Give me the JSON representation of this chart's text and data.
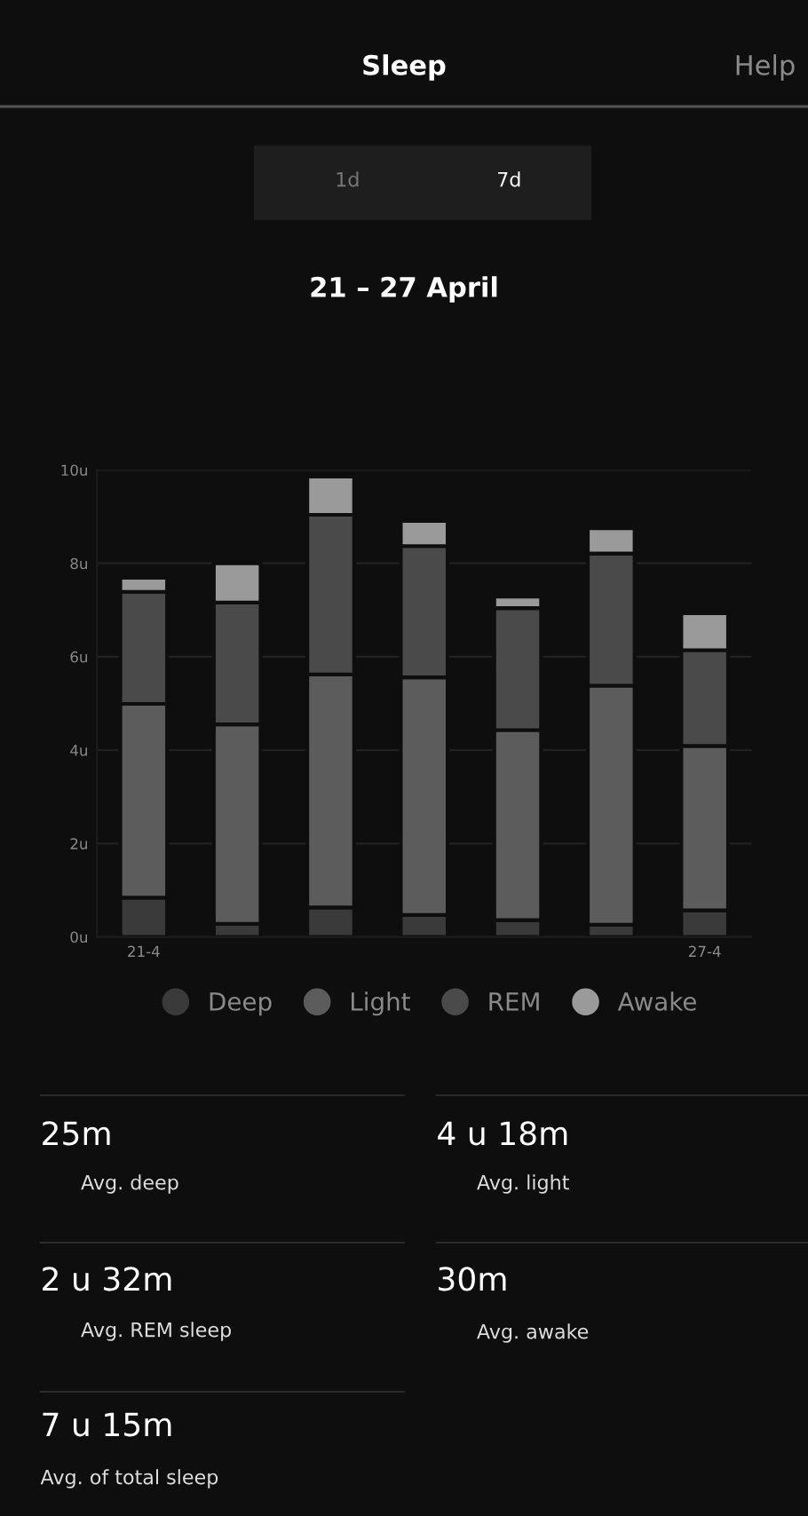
{
  "chart_data": {
    "type": "bar",
    "title": "Sleep",
    "subtitle": "21 – 27 April",
    "categories": [
      "21-4",
      null,
      null,
      null,
      null,
      null,
      "27-4"
    ],
    "stacked": true,
    "series": [
      {
        "name": "Deep",
        "color": "#3a3a3a",
        "values": [
          0.84,
          0.28,
          0.63,
          0.47,
          0.36,
          0.26,
          0.57
        ]
      },
      {
        "name": "Light",
        "color": "#5c5c5c",
        "values": [
          4.15,
          4.27,
          4.99,
          5.09,
          4.07,
          5.12,
          3.52
        ]
      },
      {
        "name": "REM",
        "color": "#4a4a4a",
        "values": [
          2.4,
          2.61,
          3.42,
          2.81,
          2.61,
          2.83,
          2.05
        ]
      },
      {
        "name": "Awake",
        "color": "#9a9a9a",
        "values": [
          0.3,
          0.84,
          0.82,
          0.54,
          0.25,
          0.54,
          0.79
        ]
      }
    ],
    "ylim": [
      0,
      10
    ],
    "yticks": [
      {
        "value": 0,
        "label": "0u"
      },
      {
        "value": 2,
        "label": "2u"
      },
      {
        "value": 4,
        "label": "4u"
      },
      {
        "value": 6,
        "label": "6u"
      },
      {
        "value": 8,
        "label": "8u"
      },
      {
        "value": 10,
        "label": "10u"
      }
    ],
    "grid": "y",
    "legend": "bottom",
    "annotations": [
      "Help",
      "1d",
      "7d",
      "25m",
      "Avg. deep",
      "4 u 18m",
      "Avg. light",
      "2 u 32m",
      "Avg. REM sleep",
      "30m",
      "Avg. awake",
      "7 u 15m",
      "Avg. of total sleep"
    ]
  }
}
